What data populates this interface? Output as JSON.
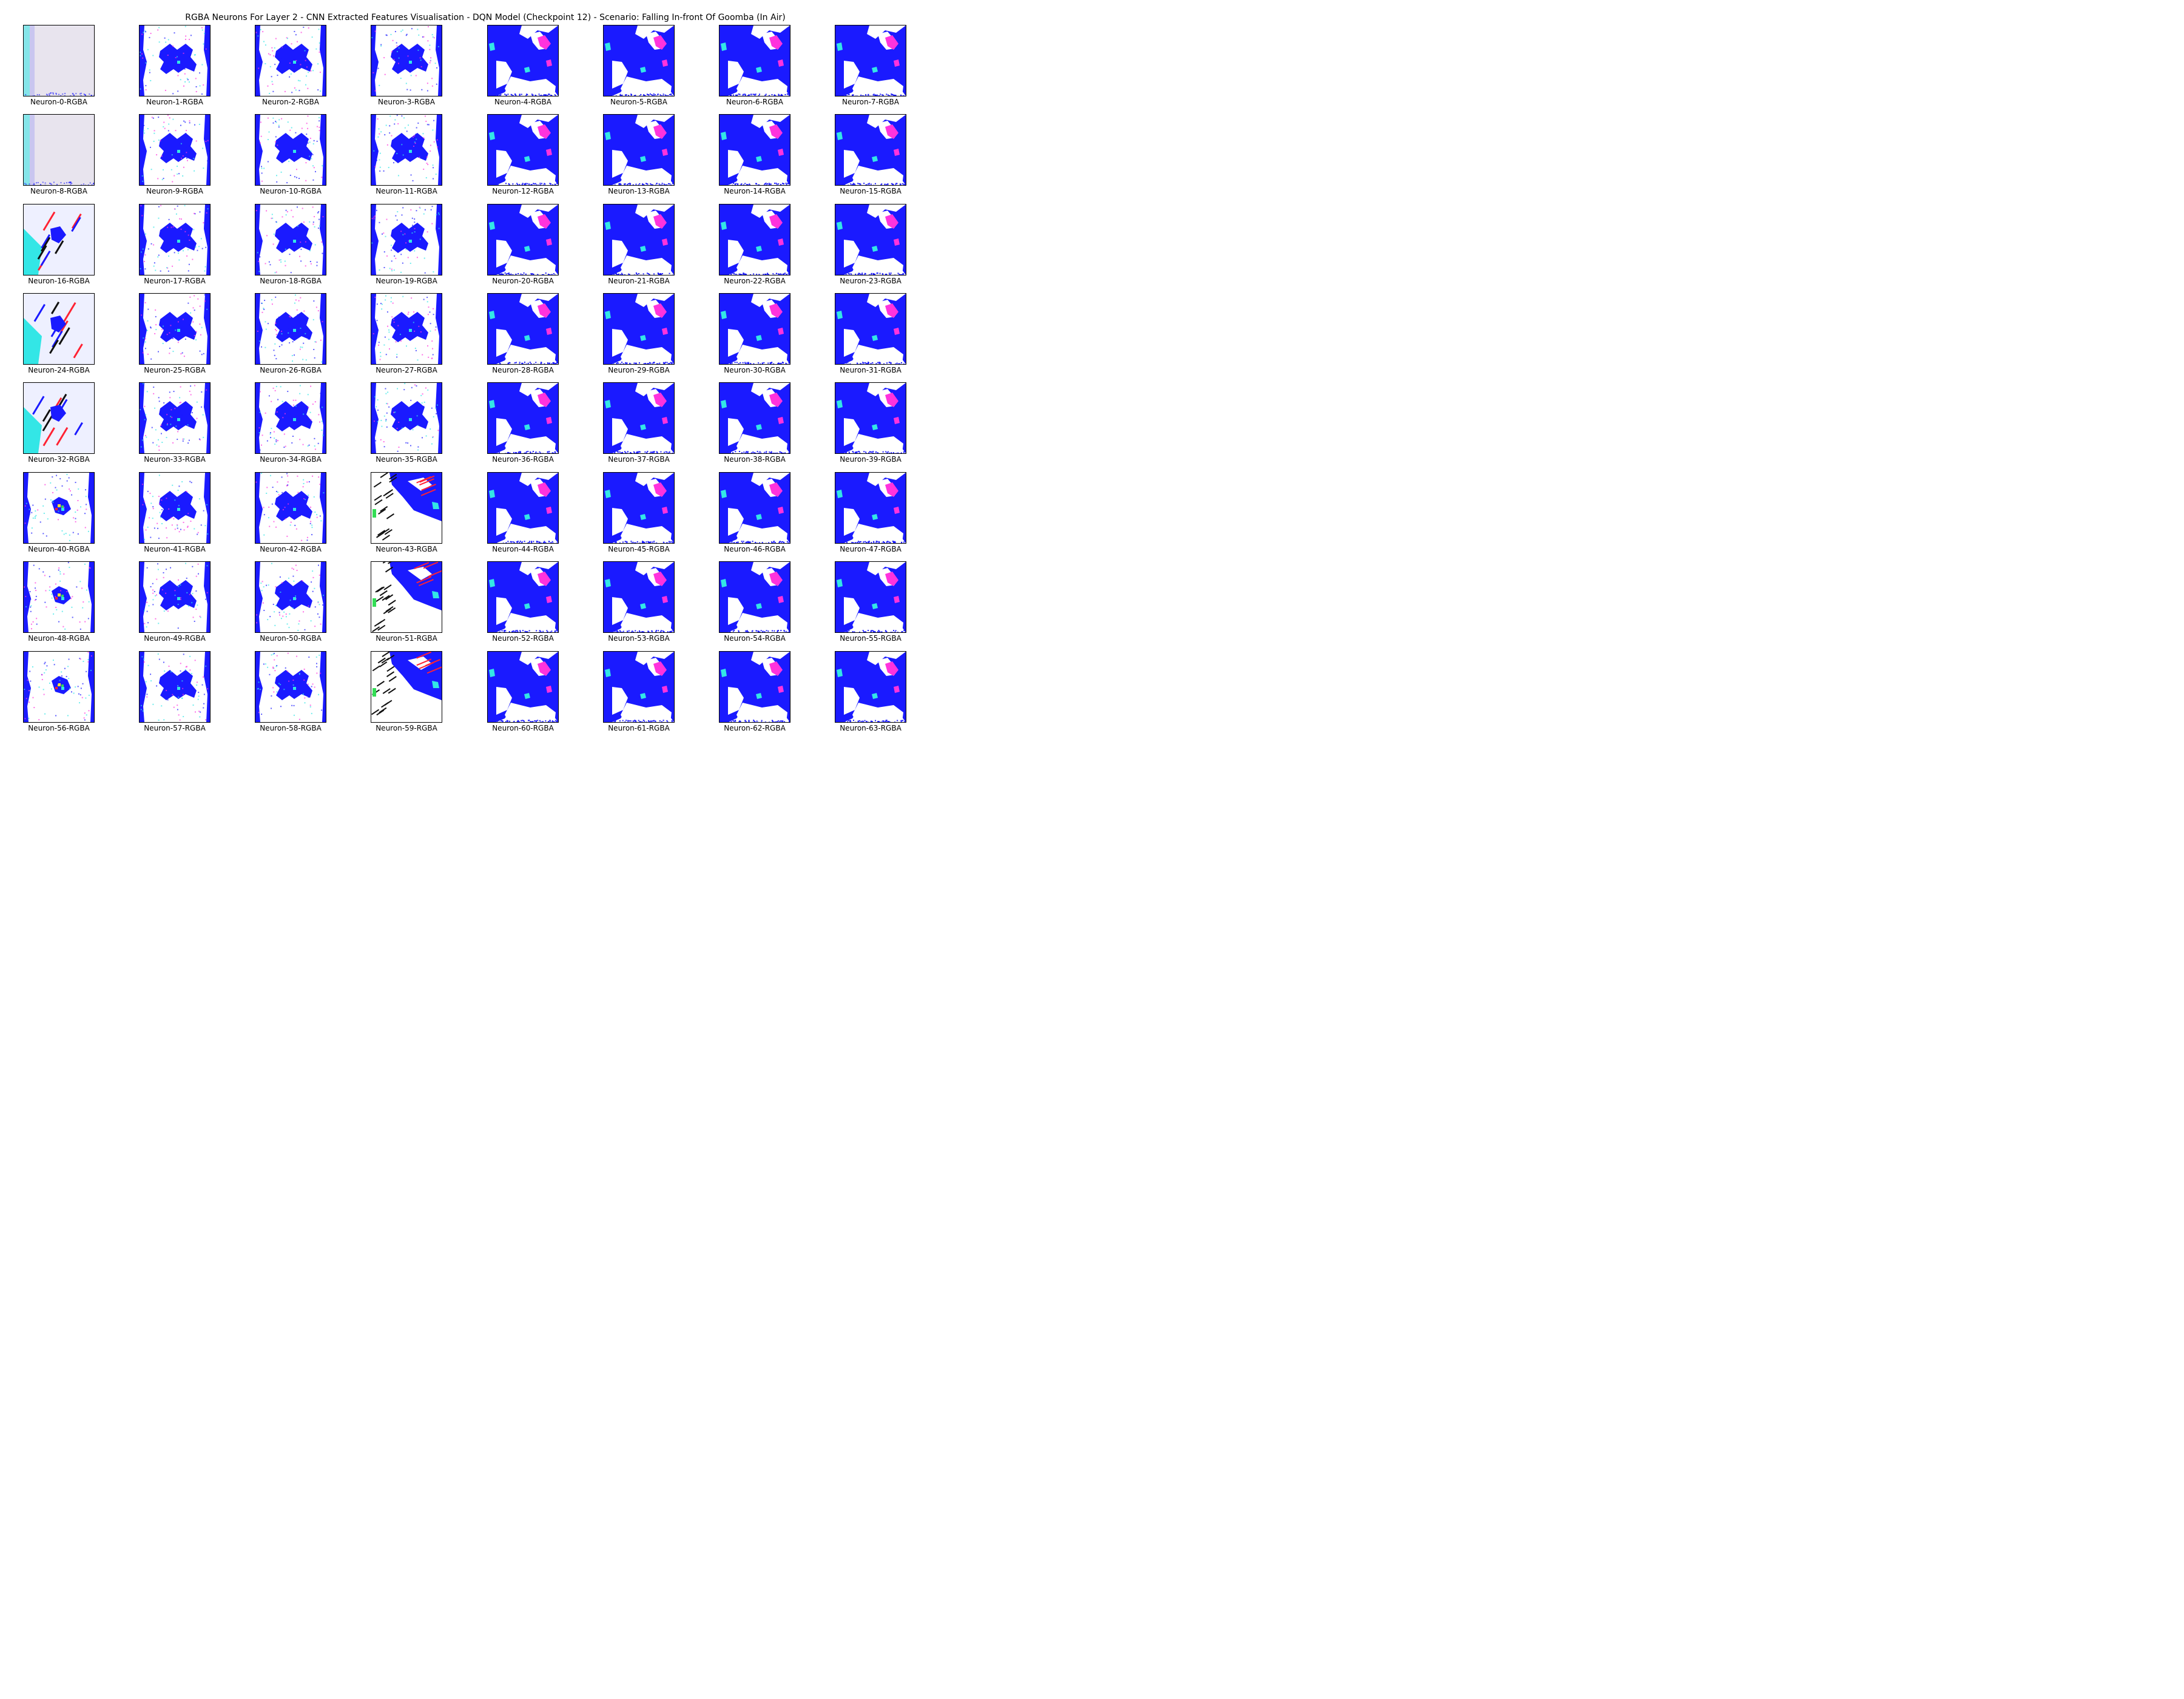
{
  "figure": {
    "title": "RGBA Neurons For Layer 2 - CNN Extracted Features Visualisation - DQN Model (Checkpoint 12) - Scenario: Falling In-front Of Goomba (In Air)"
  },
  "colors": {
    "blue": "#1a1aff",
    "white": "#ffffff",
    "magenta": "#ff33dd",
    "cyan": "#33e6e6",
    "green": "#33dd55",
    "pale": "#e8e4ee",
    "black": "#111111",
    "red": "#ff2233",
    "yellow": "#ffe033"
  },
  "neurons": [
    {
      "label": "Neuron-0-RGBA",
      "style": "pale"
    },
    {
      "label": "Neuron-1-RGBA",
      "style": "x"
    },
    {
      "label": "Neuron-2-RGBA",
      "style": "x"
    },
    {
      "label": "Neuron-3-RGBA",
      "style": "x"
    },
    {
      "label": "Neuron-4-RGBA",
      "style": "full"
    },
    {
      "label": "Neuron-5-RGBA",
      "style": "full"
    },
    {
      "label": "Neuron-6-RGBA",
      "style": "full"
    },
    {
      "label": "Neuron-7-RGBA",
      "style": "full"
    },
    {
      "label": "Neuron-8-RGBA",
      "style": "pale"
    },
    {
      "label": "Neuron-9-RGBA",
      "style": "x"
    },
    {
      "label": "Neuron-10-RGBA",
      "style": "x"
    },
    {
      "label": "Neuron-11-RGBA",
      "style": "x"
    },
    {
      "label": "Neuron-12-RGBA",
      "style": "full"
    },
    {
      "label": "Neuron-13-RGBA",
      "style": "full"
    },
    {
      "label": "Neuron-14-RGBA",
      "style": "full"
    },
    {
      "label": "Neuron-15-RGBA",
      "style": "full"
    },
    {
      "label": "Neuron-16-RGBA",
      "style": "streak"
    },
    {
      "label": "Neuron-17-RGBA",
      "style": "x"
    },
    {
      "label": "Neuron-18-RGBA",
      "style": "x"
    },
    {
      "label": "Neuron-19-RGBA",
      "style": "x"
    },
    {
      "label": "Neuron-20-RGBA",
      "style": "full"
    },
    {
      "label": "Neuron-21-RGBA",
      "style": "full"
    },
    {
      "label": "Neuron-22-RGBA",
      "style": "full"
    },
    {
      "label": "Neuron-23-RGBA",
      "style": "full"
    },
    {
      "label": "Neuron-24-RGBA",
      "style": "streak"
    },
    {
      "label": "Neuron-25-RGBA",
      "style": "x"
    },
    {
      "label": "Neuron-26-RGBA",
      "style": "x"
    },
    {
      "label": "Neuron-27-RGBA",
      "style": "x"
    },
    {
      "label": "Neuron-28-RGBA",
      "style": "full"
    },
    {
      "label": "Neuron-29-RGBA",
      "style": "full"
    },
    {
      "label": "Neuron-30-RGBA",
      "style": "full"
    },
    {
      "label": "Neuron-31-RGBA",
      "style": "full"
    },
    {
      "label": "Neuron-32-RGBA",
      "style": "streak"
    },
    {
      "label": "Neuron-33-RGBA",
      "style": "x"
    },
    {
      "label": "Neuron-34-RGBA",
      "style": "x"
    },
    {
      "label": "Neuron-35-RGBA",
      "style": "x"
    },
    {
      "label": "Neuron-36-RGBA",
      "style": "full"
    },
    {
      "label": "Neuron-37-RGBA",
      "style": "full"
    },
    {
      "label": "Neuron-38-RGBA",
      "style": "full"
    },
    {
      "label": "Neuron-39-RGBA",
      "style": "full"
    },
    {
      "label": "Neuron-40-RGBA",
      "style": "speck"
    },
    {
      "label": "Neuron-41-RGBA",
      "style": "x"
    },
    {
      "label": "Neuron-42-RGBA",
      "style": "x"
    },
    {
      "label": "Neuron-43-RGBA",
      "style": "dark"
    },
    {
      "label": "Neuron-44-RGBA",
      "style": "full"
    },
    {
      "label": "Neuron-45-RGBA",
      "style": "full"
    },
    {
      "label": "Neuron-46-RGBA",
      "style": "full"
    },
    {
      "label": "Neuron-47-RGBA",
      "style": "full"
    },
    {
      "label": "Neuron-48-RGBA",
      "style": "speck"
    },
    {
      "label": "Neuron-49-RGBA",
      "style": "x"
    },
    {
      "label": "Neuron-50-RGBA",
      "style": "x"
    },
    {
      "label": "Neuron-51-RGBA",
      "style": "dark"
    },
    {
      "label": "Neuron-52-RGBA",
      "style": "full"
    },
    {
      "label": "Neuron-53-RGBA",
      "style": "full"
    },
    {
      "label": "Neuron-54-RGBA",
      "style": "full"
    },
    {
      "label": "Neuron-55-RGBA",
      "style": "full"
    },
    {
      "label": "Neuron-56-RGBA",
      "style": "speck"
    },
    {
      "label": "Neuron-57-RGBA",
      "style": "x"
    },
    {
      "label": "Neuron-58-RGBA",
      "style": "x"
    },
    {
      "label": "Neuron-59-RGBA",
      "style": "dark"
    },
    {
      "label": "Neuron-60-RGBA",
      "style": "full"
    },
    {
      "label": "Neuron-61-RGBA",
      "style": "full"
    },
    {
      "label": "Neuron-62-RGBA",
      "style": "full"
    },
    {
      "label": "Neuron-63-RGBA",
      "style": "full"
    }
  ]
}
